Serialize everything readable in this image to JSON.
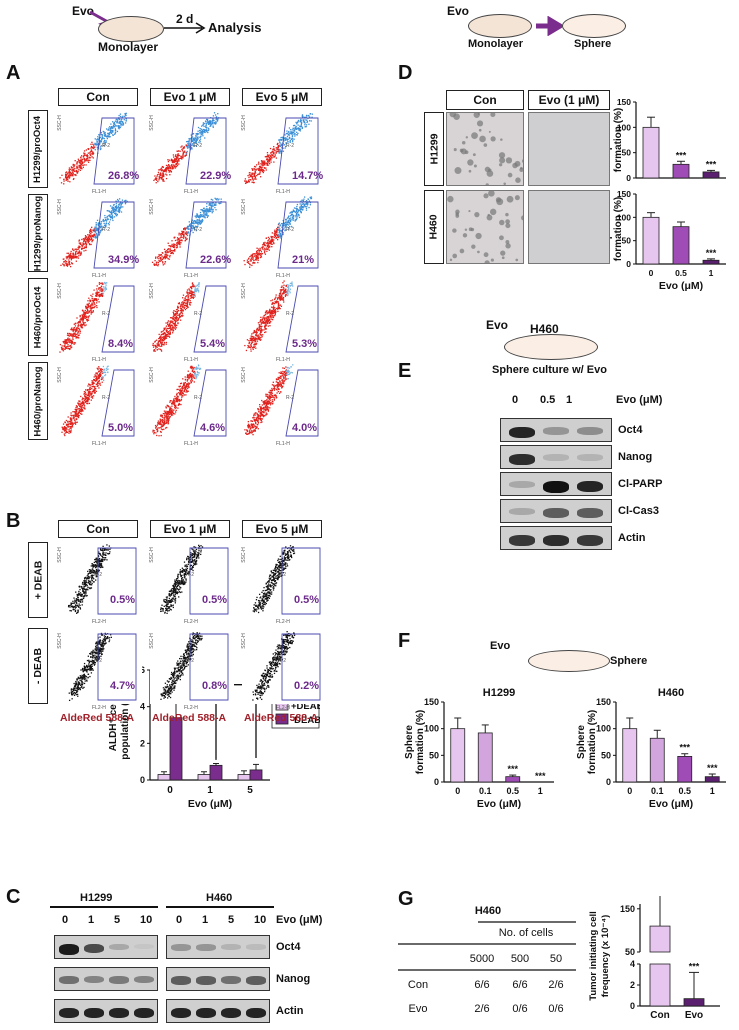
{
  "panels": {
    "A": "A",
    "B": "B",
    "C": "C",
    "D": "D",
    "E": "E",
    "F": "F",
    "G": "G"
  },
  "top_left": {
    "evo": "Evo",
    "monolayer": "Monolayer",
    "duration": "2 d",
    "analysis": "Analysis"
  },
  "top_right": {
    "evo": "Evo",
    "monolayer": "Monolayer",
    "sphere": "Sphere"
  },
  "panel_a": {
    "cols": [
      "Con",
      "Evo 1 μM",
      "Evo 5 μM"
    ],
    "rows": [
      "H1299/proOct4",
      "H1299/proNanog",
      "H460/proOct4",
      "H460/proNanog"
    ],
    "pcts": [
      [
        "26.8%",
        "22.9%",
        "14.7%"
      ],
      [
        "34.9%",
        "22.6%",
        "21%"
      ],
      [
        "8.4%",
        "5.4%",
        "5.3%"
      ],
      [
        "5.0%",
        "4.6%",
        "4.0%"
      ]
    ],
    "x_small": "FL1-H",
    "y_small": "SSC-H",
    "gate": "R-2"
  },
  "panel_b": {
    "cols": [
      "Con",
      "Evo 1 μM",
      "Evo 5 μM"
    ],
    "rows": [
      "+ DEAB",
      "- DEAB"
    ],
    "pcts": [
      [
        "0.5%",
        "0.5%",
        "0.5%"
      ],
      [
        "4.7%",
        "0.8%",
        "0.2%"
      ]
    ],
    "xaxis": "AldeRed 588-A",
    "x_small": "FL2-H",
    "y_small": "SSC-H",
    "gate": "R-2"
  },
  "panel_d": {
    "cols": [
      "Con",
      "Evo (1 μM)"
    ],
    "rows": [
      "H1299",
      "H460"
    ]
  },
  "panel_e": {
    "title": "H460",
    "evo": "Evo",
    "subtitle": "Sphere culture w/ Evo",
    "doses": [
      "0",
      "0.5",
      "1"
    ],
    "unit": "Evo (μM)",
    "bands": [
      "Oct4",
      "Nanog",
      "Cl-PARP",
      "Cl-Cas3",
      "Actin"
    ]
  },
  "panel_f": {
    "evo": "Evo",
    "sphere": "Sphere"
  },
  "panel_c": {
    "cell1": "H1299",
    "cell2": "H460",
    "doses": [
      "0",
      "1",
      "5",
      "10",
      "0",
      "1",
      "5",
      "10"
    ],
    "unit": "Evo (μM)",
    "bands": [
      "Oct4",
      "Nanog",
      "Actin"
    ]
  },
  "panel_g": {
    "title": "H460",
    "header": "No. of cells",
    "cols": [
      "5000",
      "500",
      "50"
    ],
    "rows": [
      {
        "name": "Con",
        "vals": [
          "6/6",
          "6/6",
          "2/6"
        ]
      },
      {
        "name": "Evo",
        "vals": [
          "2/6",
          "0/6",
          "0/6"
        ]
      }
    ]
  },
  "chart_data": [
    {
      "id": "D-H1299",
      "type": "bar",
      "categories": [
        "0",
        "0.5",
        "1"
      ],
      "values": [
        100,
        27,
        12
      ],
      "errors": [
        20,
        6,
        3
      ],
      "ylabel": "Sphere formation (%)",
      "ylim": [
        0,
        150
      ],
      "yticks": [
        0,
        50,
        100,
        150
      ],
      "sig": [
        "",
        "***",
        "***"
      ]
    },
    {
      "id": "D-H460",
      "type": "bar",
      "categories": [
        "0",
        "0.5",
        "1"
      ],
      "values": [
        100,
        80,
        8
      ],
      "errors": [
        10,
        10,
        3
      ],
      "xlabel": "Evo (μM)",
      "ylabel": "Sphere formation (%)",
      "ylim": [
        0,
        150
      ],
      "yticks": [
        0,
        50,
        100,
        150
      ],
      "sig": [
        "",
        "",
        "***"
      ]
    },
    {
      "id": "B-ALDH",
      "type": "bar",
      "categories": [
        "0",
        "1",
        "5"
      ],
      "series": [
        {
          "name": "+DEAB",
          "values": [
            0.3,
            0.3,
            0.3
          ],
          "errors": [
            0.15,
            0.15,
            0.2
          ],
          "color": "#e6c6ef"
        },
        {
          "name": "-DEAB",
          "values": [
            3.4,
            0.8,
            0.55
          ],
          "errors": [
            1.0,
            0.1,
            0.3
          ],
          "color": "#7b2d8e"
        }
      ],
      "xlabel": "Evo (μM)",
      "ylabel": "ALDH⁺ cell population (%)",
      "ylim": [
        0,
        6
      ],
      "yticks": [
        0,
        2,
        4,
        6
      ],
      "sig": [
        "**",
        "**"
      ]
    },
    {
      "id": "F-H1299",
      "type": "bar",
      "title": "H1299",
      "categories": [
        "0",
        "0.1",
        "0.5",
        "1"
      ],
      "values": [
        100,
        92,
        10,
        0
      ],
      "errors": [
        20,
        15,
        3,
        0
      ],
      "xlabel": "Evo (μM)",
      "ylabel": "Sphere formation (%)",
      "ylim": [
        0,
        150
      ],
      "yticks": [
        0,
        50,
        100,
        150
      ],
      "sig": [
        "",
        "",
        "***",
        "***"
      ]
    },
    {
      "id": "F-H460",
      "type": "bar",
      "title": "H460",
      "categories": [
        "0",
        "0.1",
        "0.5",
        "1"
      ],
      "values": [
        100,
        82,
        48,
        10
      ],
      "errors": [
        20,
        15,
        5,
        5
      ],
      "xlabel": "Evo (μM)",
      "ylabel": "Sphere formation (%)",
      "ylim": [
        0,
        150
      ],
      "yticks": [
        0,
        50,
        100,
        150
      ],
      "sig": [
        "",
        "",
        "***",
        "***"
      ]
    },
    {
      "id": "G-TIC",
      "type": "bar",
      "categories": [
        "Con",
        "Evo"
      ],
      "values": [
        110,
        0.7
      ],
      "errors": [
        140,
        2.5
      ],
      "ylabel": "Tumor initiating cell frequency (x 10⁻⁴)",
      "yticks_lower": [
        0,
        2,
        4
      ],
      "yticks_upper": [
        50,
        150
      ],
      "sig": [
        "",
        "***"
      ]
    }
  ]
}
